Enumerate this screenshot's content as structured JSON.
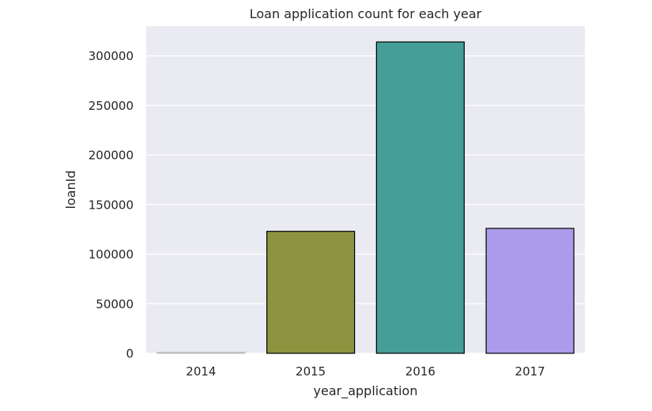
{
  "chart_data": {
    "type": "bar",
    "title": "Loan application count for each year",
    "xlabel": "year_application",
    "ylabel": "loanId",
    "categories": [
      "2014",
      "2015",
      "2016",
      "2017"
    ],
    "values": [
      1000,
      123000,
      314000,
      126000
    ],
    "bar_colors": [
      "#d9d9d9",
      "#8c9440",
      "#459e97",
      "#ab9bea"
    ],
    "bar_edge_color": "#000000",
    "ylim": [
      0,
      330000
    ],
    "yticks": [
      0,
      50000,
      100000,
      150000,
      200000,
      250000,
      300000
    ],
    "ytick_labels": [
      "0",
      "50000",
      "100000",
      "150000",
      "200000",
      "250000",
      "300000"
    ],
    "grid": true,
    "plot_background": "#eaeaf2",
    "grid_color": "#ffffff"
  }
}
